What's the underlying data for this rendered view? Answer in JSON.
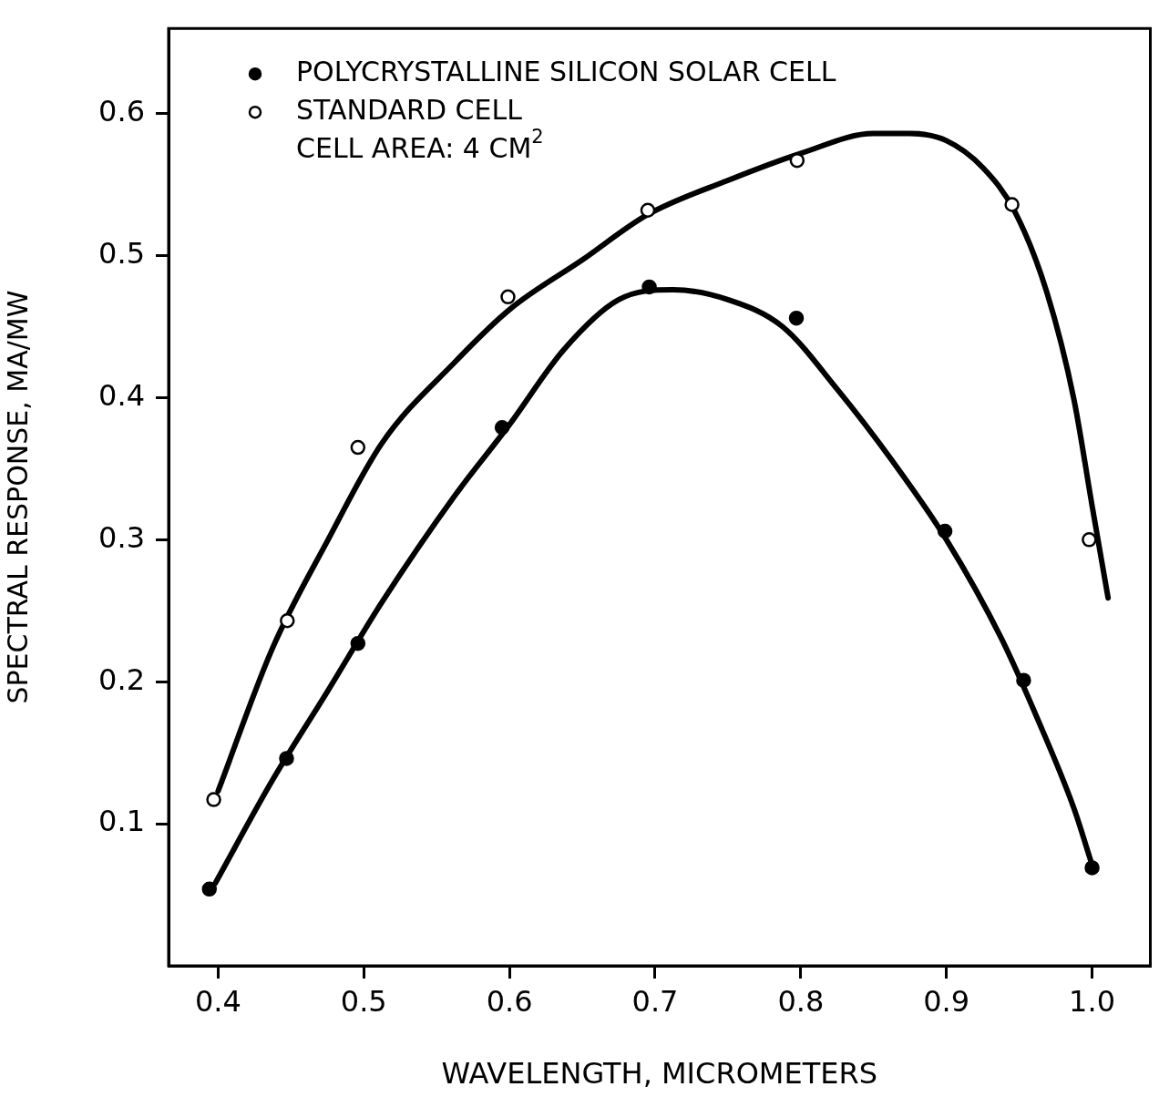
{
  "chart_data": {
    "type": "scatter",
    "xlabel": "WAVELENGTH, MICROMETERS",
    "ylabel": "SPECTRAL RESPONSE, MA/MW",
    "xlim": [
      0.366,
      1.04
    ],
    "ylim": [
      0,
      0.66
    ],
    "xticks": [
      {
        "value": 0.4,
        "label": "0.4"
      },
      {
        "value": 0.5,
        "label": "0.5"
      },
      {
        "value": 0.6,
        "label": "0.6"
      },
      {
        "value": 0.7,
        "label": "0.7"
      },
      {
        "value": 0.8,
        "label": "0.8"
      },
      {
        "value": 0.9,
        "label": "0.9"
      },
      {
        "value": 1.0,
        "label": "1.0"
      }
    ],
    "yticks": [
      0.1,
      0.2,
      0.3,
      0.4,
      0.5,
      0.6
    ],
    "grid": false,
    "legend": "top left",
    "marker": "circle",
    "annotations": [
      "CELL AREA: 4 CM$^{2}$"
    ],
    "series": [
      {
        "name": "POLYCRYSTALLINE SILICON SOLAR CELL",
        "color": "#000000",
        "x": [
          0.394,
          0.447,
          0.496,
          0.595,
          0.696,
          0.797,
          0.899,
          0.953,
          1.0
        ],
        "values": [
          0.054,
          0.146,
          0.227,
          0.379,
          0.478,
          0.456,
          0.306,
          0.201,
          0.069
        ]
      },
      {
        "name": "STANDARD CELL",
        "color": "#000000",
        "x": [
          0.397,
          0.4475,
          0.496,
          0.599,
          0.695,
          0.7975,
          0.945,
          0.998
        ],
        "values": [
          0.117,
          0.243,
          0.365,
          0.471,
          0.532,
          0.567,
          0.536,
          0.3
        ]
      },
      {
        "type": "line",
        "marker": "none",
        "color": "#000000",
        "x": [
          0.398,
          0.4375,
          0.475,
          0.5125,
          0.5625,
          0.6,
          0.6375,
          0.675,
          0.7125,
          0.75,
          0.7875,
          0.825,
          0.8625,
          0.9,
          0.9375,
          0.9625,
          0.9875,
          1.0
        ],
        "values": [
          0.058,
          0.131,
          0.193,
          0.256,
          0.331,
          0.381,
          0.434,
          0.469,
          0.476,
          0.469,
          0.45,
          0.406,
          0.356,
          0.3,
          0.231,
          0.174,
          0.111,
          0.071
        ]
      },
      {
        "type": "line",
        "marker": "none",
        "color": "#000000",
        "x": [
          0.4,
          0.4375,
          0.475,
          0.5125,
          0.5625,
          0.6,
          0.65,
          0.695,
          0.75,
          0.8,
          0.85,
          0.875,
          0.9,
          0.925,
          0.947,
          0.969,
          0.9875,
          1.0,
          1.011
        ],
        "values": [
          0.123,
          0.224,
          0.299,
          0.368,
          0.425,
          0.462,
          0.497,
          0.529,
          0.553,
          0.572,
          0.586,
          0.586,
          0.581,
          0.562,
          0.531,
          0.474,
          0.399,
          0.324,
          0.259
        ]
      }
    ]
  }
}
